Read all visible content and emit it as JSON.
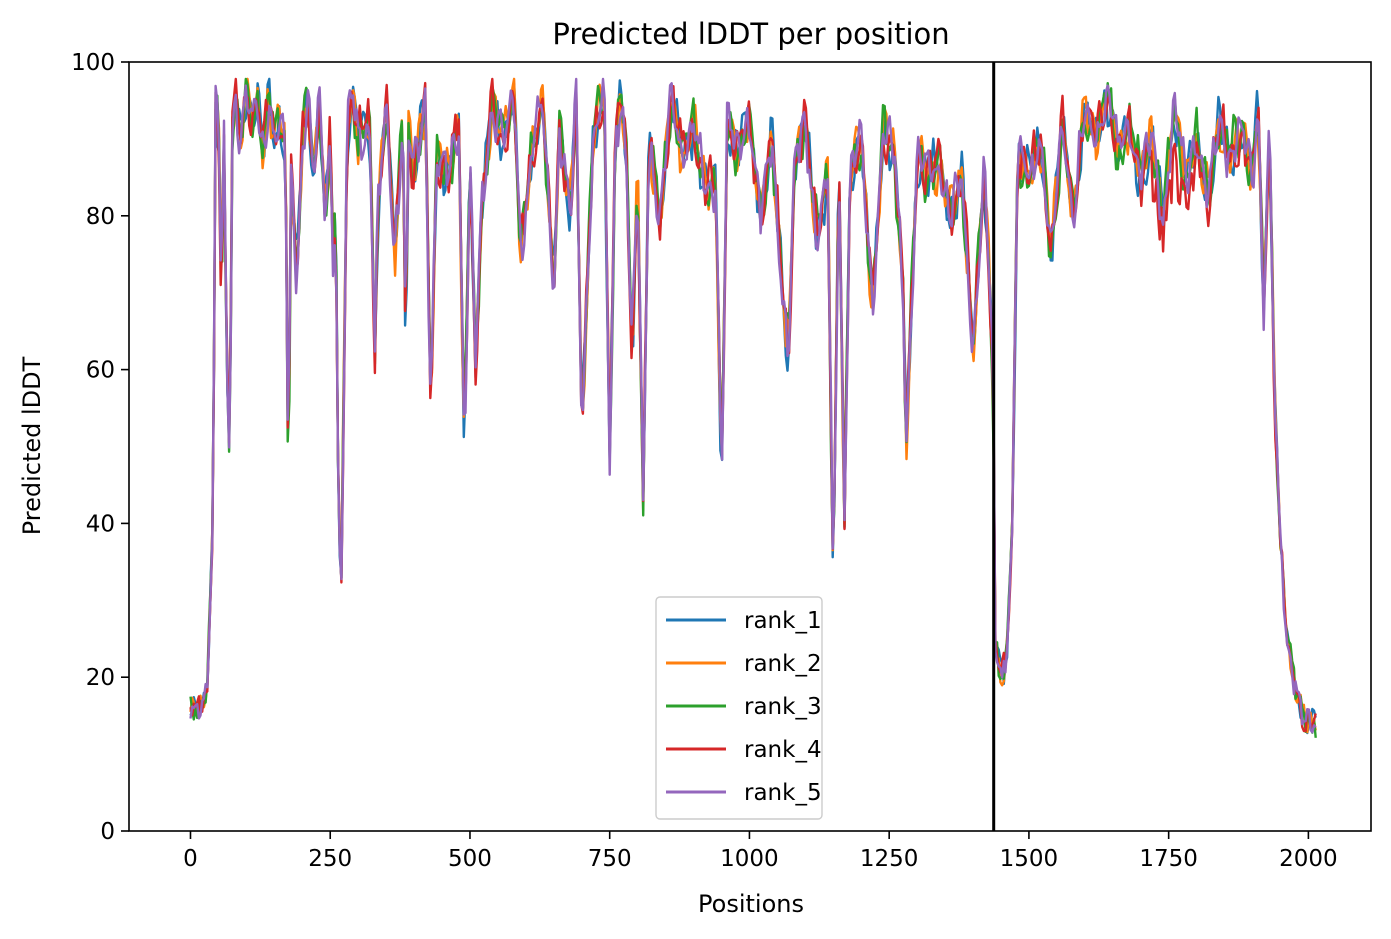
{
  "chart_data": {
    "type": "line",
    "title": "Predicted lDDT per position",
    "xlabel": "Positions",
    "ylabel": "Predicted lDDT",
    "xlim": [
      -110,
      2112
    ],
    "ylim": [
      0,
      100
    ],
    "x_ticks": [
      0,
      250,
      500,
      750,
      1000,
      1250,
      1500,
      1750,
      2000
    ],
    "y_ticks": [
      0,
      20,
      40,
      60,
      80,
      100
    ],
    "legend_position": "bottom-center",
    "chain_boundary_x": 1437,
    "grid": false,
    "series": [
      {
        "name": "rank_1",
        "color": "#1f77b4"
      },
      {
        "name": "rank_2",
        "color": "#ff7f0e"
      },
      {
        "name": "rank_3",
        "color": "#2ca02c"
      },
      {
        "name": "rank_4",
        "color": "#d62728"
      },
      {
        "name": "rank_5",
        "color": "#9467bd"
      }
    ],
    "x": [
      0,
      15,
      30,
      40,
      45,
      50,
      55,
      60,
      65,
      70,
      75,
      80,
      90,
      100,
      110,
      120,
      130,
      140,
      150,
      160,
      170,
      175,
      180,
      190,
      200,
      210,
      220,
      230,
      240,
      250,
      255,
      260,
      265,
      270,
      280,
      290,
      300,
      320,
      330,
      335,
      350,
      365,
      380,
      385,
      390,
      400,
      420,
      430,
      440,
      460,
      480,
      490,
      500,
      510,
      520,
      540,
      560,
      580,
      590,
      610,
      630,
      650,
      660,
      680,
      690,
      700,
      720,
      740,
      750,
      760,
      770,
      780,
      790,
      800,
      810,
      820,
      840,
      860,
      880,
      900,
      920,
      940,
      950,
      960,
      980,
      1000,
      1020,
      1040,
      1060,
      1070,
      1080,
      1100,
      1120,
      1140,
      1150,
      1160,
      1170,
      1180,
      1200,
      1220,
      1240,
      1260,
      1275,
      1280,
      1300,
      1320,
      1340,
      1360,
      1380,
      1400,
      1420,
      1436,
      1440,
      1450,
      1460,
      1470,
      1480,
      1500,
      1520,
      1540,
      1560,
      1580,
      1600,
      1620,
      1640,
      1660,
      1680,
      1700,
      1720,
      1740,
      1760,
      1780,
      1800,
      1820,
      1840,
      1860,
      1880,
      1900,
      1910,
      1920,
      1930,
      1940,
      1950,
      1960,
      1980,
      2000,
      2013
    ],
    "base_values": [
      16,
      15.5,
      18,
      40,
      95,
      92,
      70,
      90,
      60,
      48,
      92,
      95,
      90,
      97,
      92,
      95,
      88,
      96,
      90,
      93,
      88,
      44,
      85,
      72,
      90,
      96,
      85,
      95,
      80,
      90,
      75,
      80,
      40,
      33,
      90,
      96,
      90,
      93,
      62,
      80,
      95,
      75,
      93,
      62,
      90,
      85,
      95,
      55,
      88,
      85,
      92,
      50,
      88,
      60,
      80,
      95,
      90,
      95,
      75,
      88,
      95,
      70,
      92,
      80,
      96,
      52,
      90,
      97,
      48,
      90,
      96,
      88,
      62,
      85,
      42,
      90,
      80,
      95,
      88,
      92,
      83,
      85,
      45,
      92,
      88,
      93,
      80,
      90,
      70,
      62,
      86,
      92,
      78,
      85,
      32,
      88,
      40,
      86,
      90,
      68,
      92,
      87,
      70,
      50,
      88,
      85,
      87,
      80,
      85,
      63,
      86,
      60,
      24,
      20,
      22,
      40,
      88,
      85,
      90,
      75,
      92,
      80,
      94,
      90,
      96,
      88,
      92,
      85,
      90,
      80,
      94,
      85,
      90,
      82,
      92,
      88,
      91,
      85,
      95,
      68,
      92,
      55,
      38,
      26,
      17,
      14,
      14,
      15,
      16
    ],
    "annotation_text": "rank_1"
  }
}
